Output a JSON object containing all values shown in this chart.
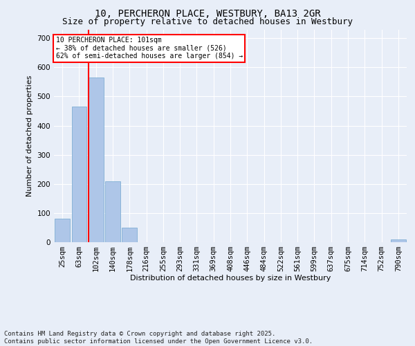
{
  "title": "10, PERCHERON PLACE, WESTBURY, BA13 2GR",
  "subtitle": "Size of property relative to detached houses in Westbury",
  "xlabel": "Distribution of detached houses by size in Westbury",
  "ylabel": "Number of detached properties",
  "categories": [
    "25sqm",
    "63sqm",
    "102sqm",
    "140sqm",
    "178sqm",
    "216sqm",
    "255sqm",
    "293sqm",
    "331sqm",
    "369sqm",
    "408sqm",
    "446sqm",
    "484sqm",
    "522sqm",
    "561sqm",
    "599sqm",
    "637sqm",
    "675sqm",
    "714sqm",
    "752sqm",
    "790sqm"
  ],
  "bar_values": [
    80,
    465,
    565,
    210,
    50,
    0,
    0,
    0,
    0,
    0,
    0,
    0,
    0,
    0,
    0,
    0,
    0,
    0,
    0,
    0,
    10
  ],
  "bar_color": "#aec6e8",
  "bar_edgecolor": "#7fafd4",
  "vline_x_index": 2,
  "vline_color": "red",
  "ylim": [
    0,
    730
  ],
  "yticks": [
    0,
    100,
    200,
    300,
    400,
    500,
    600,
    700
  ],
  "annotation_text": "10 PERCHERON PLACE: 101sqm\n← 38% of detached houses are smaller (526)\n62% of semi-detached houses are larger (854) →",
  "annotation_box_color": "white",
  "annotation_edge_color": "red",
  "footer_line1": "Contains HM Land Registry data © Crown copyright and database right 2025.",
  "footer_line2": "Contains public sector information licensed under the Open Government Licence v3.0.",
  "bg_color": "#e8eef8",
  "grid_color": "#ffffff",
  "title_fontsize": 10,
  "subtitle_fontsize": 9,
  "axis_label_fontsize": 8,
  "tick_fontsize": 7.5,
  "annotation_fontsize": 7,
  "footer_fontsize": 6.5
}
